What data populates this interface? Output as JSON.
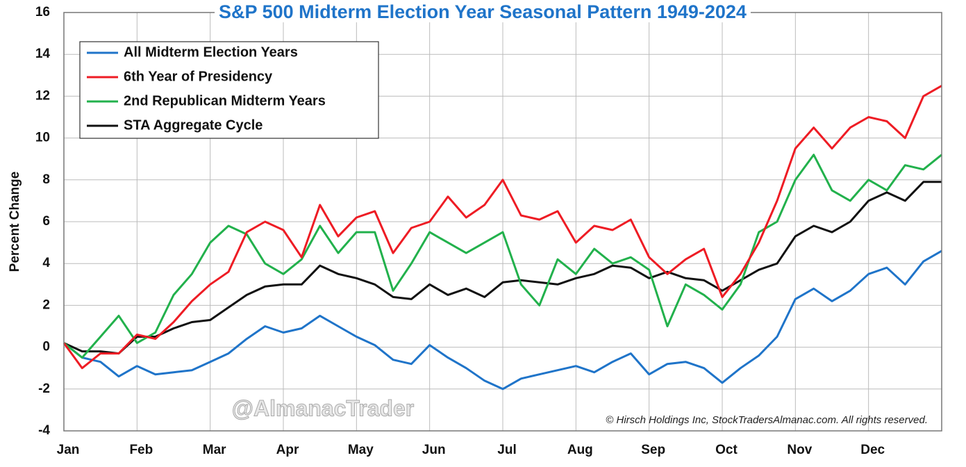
{
  "chart_data": {
    "type": "line",
    "title": "S&P 500 Midterm Election Year Seasonal Pattern 1949-2024",
    "y_label": "Percent Change",
    "watermark": "@AlmanacTrader",
    "copyright": "© Hirsch Holdings Inc, StockTradersAlmanac.com. All rights reserved.",
    "x": [
      0,
      0.25,
      0.5,
      0.75,
      1,
      1.25,
      1.5,
      1.75,
      2,
      2.25,
      2.5,
      2.75,
      3,
      3.25,
      3.5,
      3.75,
      4,
      4.25,
      4.5,
      4.75,
      5,
      5.25,
      5.5,
      5.75,
      6,
      6.25,
      6.5,
      6.75,
      7,
      7.25,
      7.5,
      7.75,
      8,
      8.25,
      8.5,
      8.75,
      9,
      9.25,
      9.5,
      9.75,
      10,
      10.25,
      10.5,
      10.75,
      11,
      11.25,
      11.5,
      11.75,
      12
    ],
    "xlim": [
      0,
      12
    ],
    "xticks": [
      {
        "value": 0,
        "label": "Jan"
      },
      {
        "value": 1,
        "label": "Feb"
      },
      {
        "value": 2,
        "label": "Mar"
      },
      {
        "value": 3,
        "label": "Apr"
      },
      {
        "value": 4,
        "label": "May"
      },
      {
        "value": 5,
        "label": "Jun"
      },
      {
        "value": 6,
        "label": "Jul"
      },
      {
        "value": 7,
        "label": "Aug"
      },
      {
        "value": 8,
        "label": "Sep"
      },
      {
        "value": 9,
        "label": "Oct"
      },
      {
        "value": 10,
        "label": "Nov"
      },
      {
        "value": 11,
        "label": "Dec"
      }
    ],
    "ylim": [
      -4,
      16
    ],
    "yticks": [
      -4,
      -2,
      0,
      2,
      4,
      6,
      8,
      10,
      12,
      14,
      16
    ],
    "grid": true,
    "legend": "upper left",
    "series": [
      {
        "name": "All Midterm Election Years",
        "color": "#1f74c9",
        "values": [
          0.2,
          -0.5,
          -0.7,
          -1.4,
          -0.9,
          -1.3,
          -1.2,
          -1.1,
          -0.7,
          -0.3,
          0.4,
          1.0,
          0.7,
          0.9,
          1.5,
          1.0,
          0.5,
          0.1,
          -0.6,
          -0.8,
          0.1,
          -0.5,
          -1.0,
          -1.6,
          -2.0,
          -1.5,
          -1.3,
          -1.1,
          -0.9,
          -1.2,
          -0.7,
          -0.3,
          -1.3,
          -0.8,
          -0.7,
          -1.0,
          -1.7,
          -1.0,
          -0.4,
          0.5,
          2.3,
          2.8,
          2.2,
          2.7,
          3.5,
          3.8,
          3.0,
          4.1,
          4.6
        ]
      },
      {
        "name": "6th Year of Presidency",
        "color": "#ee1c24",
        "values": [
          0.2,
          -1.0,
          -0.3,
          -0.3,
          0.6,
          0.4,
          1.2,
          2.2,
          3.0,
          3.6,
          5.5,
          6.0,
          5.6,
          4.3,
          6.8,
          5.3,
          6.2,
          6.5,
          4.5,
          5.7,
          6.0,
          7.2,
          6.2,
          6.8,
          8.0,
          6.3,
          6.1,
          6.5,
          5.0,
          5.8,
          5.6,
          6.1,
          4.3,
          3.5,
          4.2,
          4.7,
          2.4,
          3.5,
          5.0,
          7.0,
          9.5,
          10.5,
          9.5,
          10.5,
          11.0,
          10.8,
          10.0,
          12.0,
          12.5
        ]
      },
      {
        "name": "2nd Republican Midterm Years",
        "color": "#22b14c",
        "values": [
          0.2,
          -0.5,
          0.5,
          1.5,
          0.2,
          0.7,
          2.5,
          3.5,
          5.0,
          5.8,
          5.4,
          4.0,
          3.5,
          4.2,
          5.8,
          4.5,
          5.5,
          5.5,
          2.7,
          4.0,
          5.5,
          5.0,
          4.5,
          5.0,
          5.5,
          3.0,
          2.0,
          4.2,
          3.5,
          4.7,
          4.0,
          4.3,
          3.7,
          1.0,
          3.0,
          2.5,
          1.8,
          3.0,
          5.5,
          6.0,
          8.0,
          9.2,
          7.5,
          7.0,
          8.0,
          7.5,
          8.7,
          8.5,
          9.2
        ]
      },
      {
        "name": "STA Aggregate Cycle",
        "color": "#111111",
        "values": [
          0.2,
          -0.2,
          -0.2,
          -0.3,
          0.5,
          0.5,
          0.9,
          1.2,
          1.3,
          1.9,
          2.5,
          2.9,
          3.0,
          3.0,
          3.9,
          3.5,
          3.3,
          3.0,
          2.4,
          2.3,
          3.0,
          2.5,
          2.8,
          2.4,
          3.1,
          3.2,
          3.1,
          3.0,
          3.3,
          3.5,
          3.9,
          3.8,
          3.3,
          3.6,
          3.3,
          3.2,
          2.7,
          3.2,
          3.7,
          4.0,
          5.3,
          5.8,
          5.5,
          6.0,
          7.0,
          7.4,
          7.0,
          7.9,
          7.9
        ]
      }
    ]
  }
}
